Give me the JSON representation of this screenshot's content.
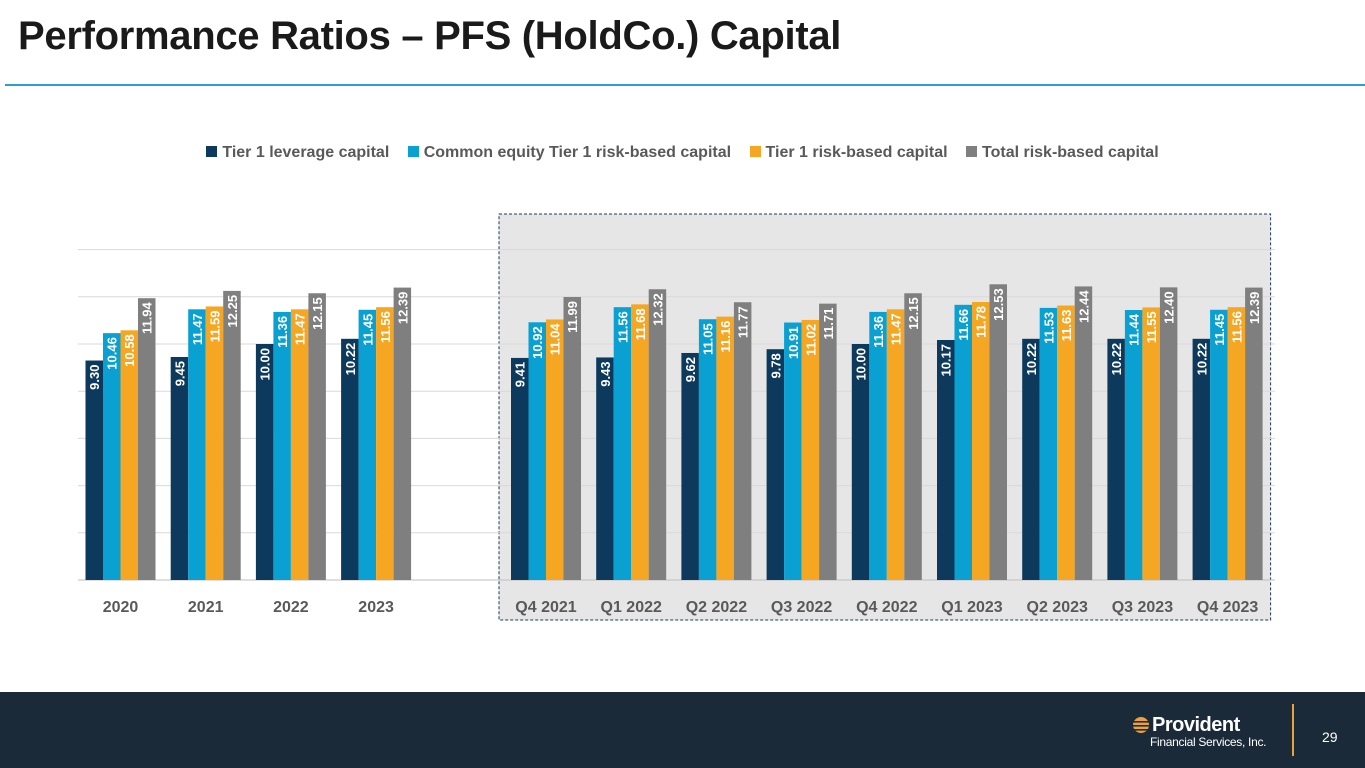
{
  "slide": {
    "title": "Performance Ratios – PFS (HoldCo.) Capital",
    "page_number": "29"
  },
  "logo": {
    "name": "Provident",
    "subtitle": "Financial Services, Inc."
  },
  "colors": {
    "tier1_leverage": "#0d3a5c",
    "cet1": "#0aa0d2",
    "tier1_risk": "#f5a623",
    "total_risk": "#7f7f7f",
    "highlight_bg": "#e6e6e6",
    "footer_bg": "#1b2a38",
    "accent_line": "#2a9fd6"
  },
  "chart_data": {
    "type": "bar",
    "title": "",
    "xlabel": "",
    "ylabel": "",
    "ylim": [
      0,
      14
    ],
    "grid": true,
    "legend_position": "top",
    "categories": [
      "2020",
      "2021",
      "2022",
      "2023",
      "Q4 2021",
      "Q1 2022",
      "Q2 2022",
      "Q3 2022",
      "Q4 2022",
      "Q1 2023",
      "Q2 2023",
      "Q3 2023",
      "Q4 2023"
    ],
    "highlighted_categories": [
      "Q4 2021",
      "Q1 2022",
      "Q2 2022",
      "Q3 2022",
      "Q4 2022",
      "Q1 2023",
      "Q2 2023",
      "Q3 2023",
      "Q4 2023"
    ],
    "series": [
      {
        "name": "Tier 1 leverage capital",
        "color": "#0d3a5c",
        "values": [
          9.3,
          9.45,
          10.0,
          10.22,
          9.41,
          9.43,
          9.62,
          9.78,
          10.0,
          10.17,
          10.22,
          10.22,
          10.22
        ]
      },
      {
        "name": "Common equity Tier 1 risk-based capital",
        "color": "#0aa0d2",
        "values": [
          10.46,
          11.47,
          11.36,
          11.45,
          10.92,
          11.56,
          11.05,
          10.91,
          11.36,
          11.66,
          11.53,
          11.44,
          11.45
        ]
      },
      {
        "name": "Tier 1 risk-based capital",
        "color": "#f5a623",
        "values": [
          10.58,
          11.59,
          11.47,
          11.56,
          11.04,
          11.68,
          11.16,
          11.02,
          11.47,
          11.78,
          11.63,
          11.55,
          11.56
        ]
      },
      {
        "name": "Total risk-based capital",
        "color": "#7f7f7f",
        "values": [
          11.94,
          12.25,
          12.15,
          12.39,
          11.99,
          12.32,
          11.77,
          11.71,
          12.15,
          12.53,
          12.44,
          12.4,
          12.39
        ]
      }
    ]
  }
}
